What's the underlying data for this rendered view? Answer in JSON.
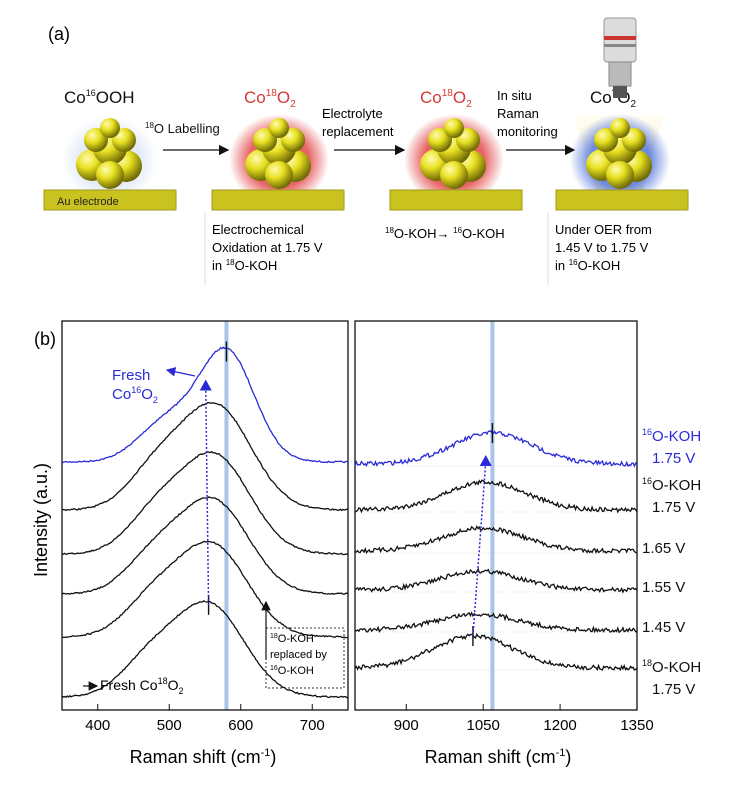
{
  "panel_a": {
    "label": "(a)",
    "stages": [
      {
        "title_pre": "Co",
        "title_sup": "16",
        "title_post": "OOH",
        "title_sub": "",
        "title_color": "#111111"
      },
      {
        "title_pre": "Co",
        "title_sup": "18",
        "title_post": "O",
        "title_sub": "2",
        "title_color": "#d23a35"
      },
      {
        "title_pre": "Co",
        "title_sup": "18",
        "title_post": "O",
        "title_sub": "2",
        "title_color": "#d23a35"
      },
      {
        "title_pre": "Co",
        "title_sup": "?",
        "title_post": "O",
        "title_sub": "2",
        "title_color": "#111111"
      }
    ],
    "electrode_label": "Au electrode",
    "arrow1": {
      "sup": "18",
      "text": "O Labelling"
    },
    "arrow2": {
      "line1": "Electrolyte",
      "line2": "replacement"
    },
    "arrow3": {
      "line1": "In situ",
      "line2": "Raman",
      "line3": "monitoring"
    },
    "caption1": {
      "line1": "Electrochemical",
      "line2": "Oxidation at 1.75 V",
      "line3_pre": "in ",
      "line3_sup": "18",
      "line3_post": "O-KOH"
    },
    "caption2": {
      "sup1": "18",
      "mid": "O-KOH→ ",
      "sup2": "16",
      "end": "O-KOH"
    },
    "caption3": {
      "line1": "Under OER from",
      "line2": "1.45 V to 1.75 V",
      "line3_pre": "in ",
      "line3_sup": "16",
      "line3_post": "O-KOH"
    },
    "colors": {
      "particle": "#e0dc10",
      "electrode": "#c9c21f",
      "red_halo": "#e3494a",
      "blue_halo": "#5d7fe0"
    }
  },
  "panel_b": {
    "label": "(b)",
    "ylabel": "Intensity (a.u.)",
    "fresh_label_line1": "Fresh",
    "fresh_label_co": "Co",
    "fresh_label_sup": "16",
    "fresh_label_o": "O",
    "fresh_label_sub": "2",
    "bottom_label_pre": "Fresh Co",
    "bottom_label_sup": "18",
    "bottom_label_o": "O",
    "bottom_label_sub": "2",
    "box_sup1": "18",
    "box_line1": "O-KOH",
    "box_line2": "replaced by",
    "box_sup2": "16",
    "box_line3": "O-KOH",
    "right_labels": [
      {
        "sup": "16",
        "text": "O-KOH",
        "line2": "1.75 V",
        "color": "#2a2ad8"
      },
      {
        "sup": "16",
        "text": "O-KOH",
        "line2": "1.75 V",
        "color": "#111111"
      },
      {
        "sup": "",
        "text": "1.65 V",
        "line2": "",
        "color": "#111111"
      },
      {
        "sup": "",
        "text": "1.55 V",
        "line2": "",
        "color": "#111111"
      },
      {
        "sup": "",
        "text": "1.45 V",
        "line2": "",
        "color": "#111111"
      },
      {
        "sup": "18",
        "text": "O-KOH",
        "line2": "1.75 V",
        "color": "#111111"
      }
    ]
  },
  "chart_data": [
    {
      "type": "line",
      "title": "",
      "xlabel": "Raman shift (cm⁻¹)",
      "ylabel": "Intensity (a.u.)",
      "xlim": [
        350,
        750
      ],
      "xticks": [
        400,
        500,
        600,
        700
      ],
      "reference_line_x": 580,
      "series": [
        {
          "name": "Fresh Co16O2",
          "color": "#2a2ad8",
          "peak_x": 580,
          "peak_width": 55
        },
        {
          "name": "16O-KOH 1.75 V",
          "color": "#111111",
          "peak_x": 565,
          "peak_width": 70
        },
        {
          "name": "1.65 V",
          "color": "#111111",
          "peak_x": 563,
          "peak_width": 70
        },
        {
          "name": "1.55 V",
          "color": "#111111",
          "peak_x": 561,
          "peak_width": 70
        },
        {
          "name": "1.45 V",
          "color": "#111111",
          "peak_x": 559,
          "peak_width": 70
        },
        {
          "name": "Fresh Co18O2",
          "color": "#111111",
          "peak_x": 555,
          "peak_width": 70
        }
      ]
    },
    {
      "type": "line",
      "title": "",
      "xlabel": "Raman shift (cm⁻¹)",
      "ylabel": "",
      "xlim": [
        800,
        1350
      ],
      "xticks": [
        900,
        1050,
        1200,
        1350
      ],
      "reference_line_x": 1068,
      "series": [
        {
          "name": "16O-KOH 1.75 V (blue)",
          "color": "#2a2ad8",
          "peak_x": 1068,
          "peak_width": 110
        },
        {
          "name": "16O-KOH 1.75 V",
          "color": "#111111",
          "peak_x": 1055,
          "peak_width": 110
        },
        {
          "name": "1.65 V",
          "color": "#111111",
          "peak_x": 1050,
          "peak_width": 110
        },
        {
          "name": "1.55 V",
          "color": "#111111",
          "peak_x": 1045,
          "peak_width": 110
        },
        {
          "name": "1.45 V",
          "color": "#111111",
          "peak_x": 1040,
          "peak_width": 110
        },
        {
          "name": "18O-KOH 1.75 V",
          "color": "#111111",
          "peak_x": 1030,
          "peak_width": 110
        }
      ]
    }
  ]
}
